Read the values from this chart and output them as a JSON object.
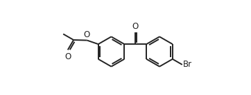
{
  "background_color": "#ffffff",
  "line_color": "#222222",
  "line_width": 1.4,
  "font_size": 8.5,
  "fig_width": 3.62,
  "fig_height": 1.38,
  "dpi": 100,
  "xlim": [
    0,
    10.0
  ],
  "ylim": [
    0,
    3.82
  ]
}
